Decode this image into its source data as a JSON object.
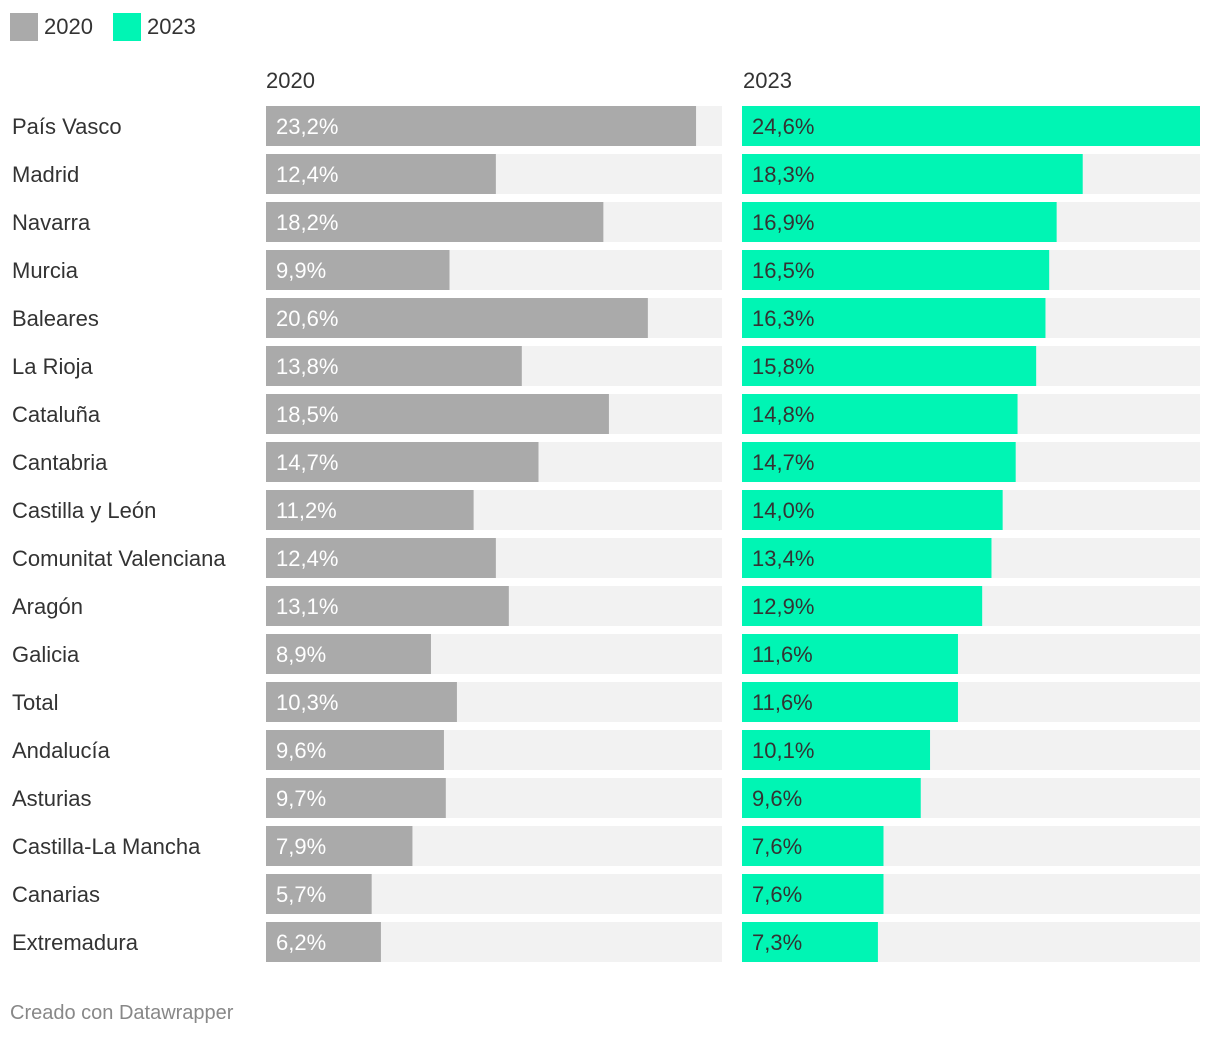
{
  "legend": [
    {
      "label": "2020",
      "color": "#aaaaaa"
    },
    {
      "label": "2023",
      "color": "#00f5b4"
    }
  ],
  "footer": "Creado con Datawrapper",
  "colors": {
    "track": "#f2f2f2",
    "text": "#333333",
    "label_light": "#ffffff",
    "label_dark": "#333333"
  },
  "chart_data": {
    "type": "bar",
    "orientation": "horizontal",
    "layout": "split-bars",
    "title": "",
    "xlabel": "",
    "ylabel": "",
    "categories": [
      "País Vasco",
      "Madrid",
      "Navarra",
      "Murcia",
      "Baleares",
      "La Rioja",
      "Cataluña",
      "Cantabria",
      "Castilla y León",
      "Comunitat Valenciana",
      "Aragón",
      "Galicia",
      "Total",
      "Andalucía",
      "Asturias",
      "Castilla-La Mancha",
      "Canarias",
      "Extremadura"
    ],
    "xlim": [
      0,
      24.6
    ],
    "series": [
      {
        "name": "2020",
        "color": "#aaaaaa",
        "values": [
          23.2,
          12.4,
          18.2,
          9.9,
          20.6,
          13.8,
          18.5,
          14.7,
          11.2,
          12.4,
          13.1,
          8.9,
          10.3,
          9.6,
          9.7,
          7.9,
          5.7,
          6.2
        ],
        "labels": [
          "23,2%",
          "12,4%",
          "18,2%",
          "9,9%",
          "20,6%",
          "13,8%",
          "18,5%",
          "14,7%",
          "11,2%",
          "12,4%",
          "13,1%",
          "8,9%",
          "10,3%",
          "9,6%",
          "9,7%",
          "7,9%",
          "5,7%",
          "6,2%"
        ]
      },
      {
        "name": "2023",
        "color": "#00f5b4",
        "values": [
          24.6,
          18.3,
          16.9,
          16.5,
          16.3,
          15.8,
          14.8,
          14.7,
          14.0,
          13.4,
          12.9,
          11.6,
          11.6,
          10.1,
          9.6,
          7.6,
          7.6,
          7.3
        ],
        "labels": [
          "24,6%",
          "18,3%",
          "16,9%",
          "16,5%",
          "16,3%",
          "15,8%",
          "14,8%",
          "14,7%",
          "14,0%",
          "13,4%",
          "12,9%",
          "11,6%",
          "11,6%",
          "10,1%",
          "9,6%",
          "7,6%",
          "7,6%",
          "7,3%"
        ]
      }
    ]
  }
}
